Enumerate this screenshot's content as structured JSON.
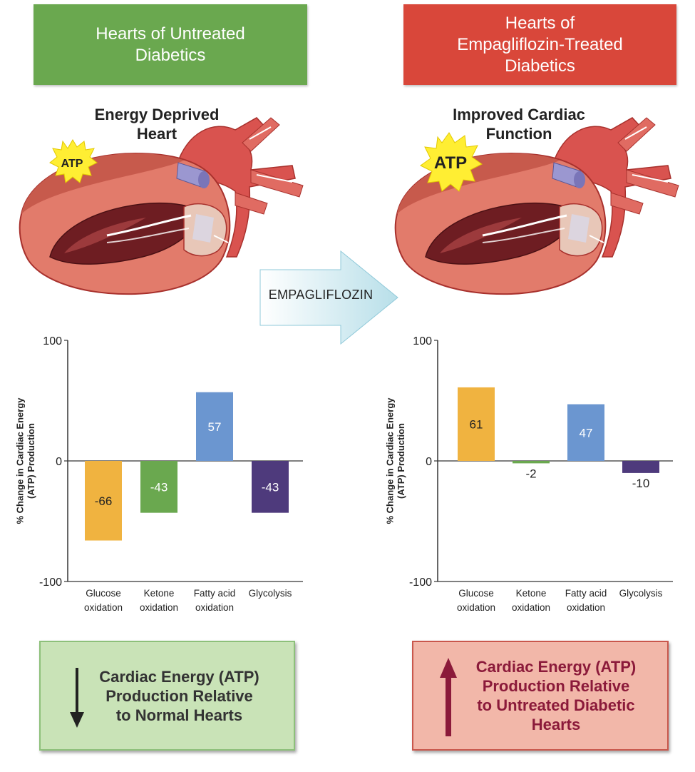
{
  "colors": {
    "header_left": "#6aa84f",
    "header_right": "#d9473a",
    "glucose": "#f0b340",
    "ketone": "#6aa84f",
    "fatty_acid": "#6b96d0",
    "glycolysis": "#4e3a7c",
    "outcome_left_bg": "#c9e3b7",
    "outcome_right_bg": "#f2b7a9",
    "outcome_right_text": "#8b1a3a"
  },
  "header_left": {
    "line1": "Hearts of Untreated",
    "line2": "Diabetics"
  },
  "header_right": {
    "line1": "Hearts of",
    "line2": "Empagliflozin-Treated",
    "line3": "Diabetics"
  },
  "heart_left": {
    "title_line1": "Energy Deprived",
    "title_line2": "Heart",
    "atp_label": "ATP"
  },
  "heart_right": {
    "title_line1": "Improved Cardiac",
    "title_line2": "Function",
    "atp_label": "ATP"
  },
  "transition_label": "EMPAGLIFLOZIN",
  "chart_data": [
    {
      "type": "bar",
      "title": "",
      "xlabel": "",
      "ylabel": "% Change in Cardiac Energy (ATP) Production",
      "ylim": [
        -100,
        100
      ],
      "yticks": [
        "100",
        "0",
        "-100"
      ],
      "categories": [
        {
          "line1": "Glucose",
          "line2": "oxidation"
        },
        {
          "line1": "Ketone",
          "line2": "oxidation"
        },
        {
          "line1": "Fatty acid",
          "line2": "oxidation"
        },
        {
          "line1": "Glycolysis",
          "line2": ""
        }
      ],
      "values": [
        -66,
        -43,
        57,
        -43
      ],
      "value_labels": [
        "-66",
        "-43",
        "57",
        "-43"
      ],
      "grid": false,
      "legend": "none"
    },
    {
      "type": "bar",
      "title": "",
      "xlabel": "",
      "ylabel": "% Change in Cardiac Energy (ATP) Production",
      "ylim": [
        -100,
        100
      ],
      "yticks": [
        "100",
        "0",
        "-100"
      ],
      "categories": [
        {
          "line1": "Glucose",
          "line2": "oxidation"
        },
        {
          "line1": "Ketone",
          "line2": "oxidation"
        },
        {
          "line1": "Fatty acid",
          "line2": "oxidation"
        },
        {
          "line1": "Glycolysis",
          "line2": ""
        }
      ],
      "values": [
        61,
        -2,
        47,
        -10
      ],
      "value_labels": [
        "61",
        "-2",
        "47",
        "-10"
      ],
      "grid": false,
      "legend": "none"
    }
  ],
  "chart_ylabel_line1": "% Change in Cardiac Energy",
  "chart_ylabel_line2": "(ATP) Production",
  "outcome_left": {
    "line1": "Cardiac Energy (ATP)",
    "line2": "Production Relative",
    "line3": "to Normal Hearts",
    "arrow": "arrow-down-icon"
  },
  "outcome_right": {
    "line1": "Cardiac Energy (ATP)",
    "line2": "Production Relative",
    "line3": "to Untreated Diabetic",
    "line4": "Hearts",
    "arrow": "arrow-up-icon"
  }
}
